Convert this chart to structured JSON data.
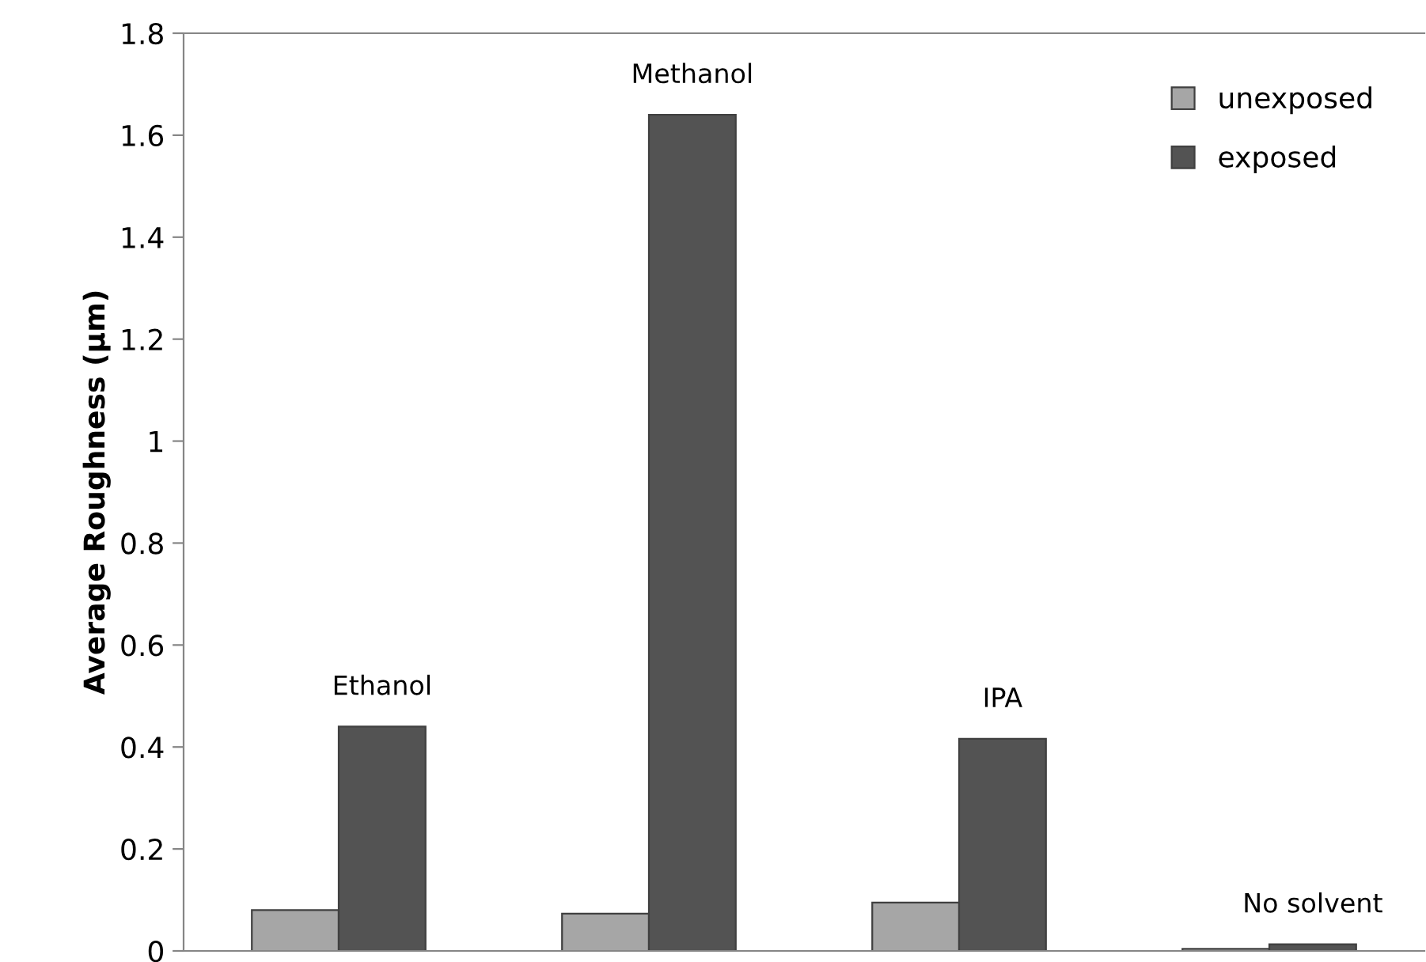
{
  "chart_data": {
    "type": "bar",
    "ylabel": "Average Roughness (µm)",
    "categories": [
      "Ethanol",
      "Methanol",
      "IPA",
      "No solvent"
    ],
    "series": [
      {
        "name": "unexposed",
        "color": "#a6a6a6",
        "values": [
          0.08,
          0.073,
          0.095,
          0.004
        ]
      },
      {
        "name": "exposed",
        "color": "#535353",
        "values": [
          0.44,
          1.64,
          0.416,
          0.013
        ]
      }
    ],
    "ylim": [
      0,
      1.8
    ],
    "yticks": [
      0,
      0.2,
      0.4,
      0.6,
      0.8,
      1,
      1.2,
      1.4,
      1.6,
      1.8
    ],
    "tick_labels": "y",
    "grid": false,
    "legend": "top right"
  }
}
